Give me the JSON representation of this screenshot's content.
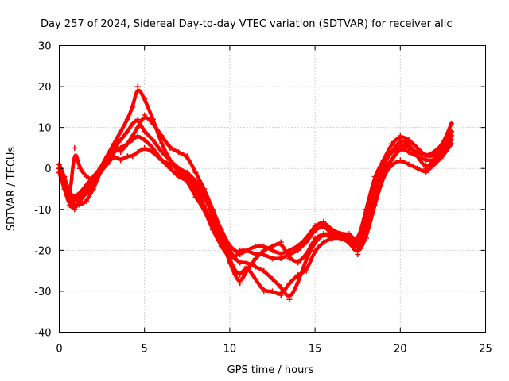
{
  "chart_data": {
    "type": "scatter",
    "title": "Day 257 of 2024, Sidereal Day-to-day VTEC variation (SDTVAR) for receiver alic",
    "xlabel": "GPS time / hours",
    "ylabel": "SDTVAR / TECUs",
    "xlim": [
      0,
      25
    ],
    "ylim": [
      -40,
      30
    ],
    "xticks": [
      0,
      5,
      10,
      15,
      20,
      25
    ],
    "yticks": [
      -40,
      -30,
      -20,
      -10,
      0,
      10,
      20,
      30
    ],
    "grid": true,
    "marker": "plus",
    "color": "#ff0000",
    "series": [
      {
        "x": [
          0.0,
          0.3,
          0.6,
          0.9,
          1.2,
          1.6,
          2.0,
          2.4,
          2.8,
          3.2,
          3.6,
          4.0,
          4.3,
          4.6,
          5.0,
          5.5,
          6.0,
          6.5,
          7.0,
          7.5,
          8.0,
          8.5,
          9.0,
          9.5,
          10.0,
          10.3,
          10.6,
          11.0,
          11.5,
          12.0,
          12.5,
          13.0,
          13.5,
          14.0,
          14.5,
          15.0,
          15.5,
          16.0,
          16.5,
          17.0,
          17.5,
          18.0,
          18.5,
          19.0,
          19.5,
          20.0,
          20.5,
          21.0,
          21.5,
          22.0,
          22.5,
          23.0
        ],
        "y": [
          0,
          -4,
          -8,
          -9,
          -9,
          -8,
          -5,
          -1,
          2,
          4,
          5,
          6,
          7,
          8,
          7,
          5,
          2,
          0,
          -2,
          -3,
          -5,
          -9,
          -14,
          -18,
          -20,
          -22,
          -20,
          -20,
          -21,
          -21,
          -22,
          -22,
          -21,
          -20,
          -18,
          -15,
          -14,
          -16,
          -16,
          -17,
          -20,
          -15,
          -5,
          0,
          2,
          5,
          4,
          3,
          2,
          2,
          4,
          7
        ]
      },
      {
        "x": [
          0.0,
          0.3,
          0.6,
          0.9,
          1.2,
          1.6,
          2.0,
          2.4,
          2.8,
          3.2,
          3.6,
          4.0,
          4.3,
          4.6,
          5.0,
          5.5,
          6.0,
          6.5,
          7.0,
          7.5,
          8.0,
          8.5,
          9.0,
          9.5,
          10.0,
          10.3,
          10.6,
          11.0,
          11.5,
          12.0,
          12.5,
          13.0,
          13.5,
          14.0,
          14.5,
          15.0,
          15.5,
          16.0,
          16.5,
          17.0,
          17.5,
          18.0,
          18.5,
          19.0,
          19.5,
          20.0,
          20.5,
          21.0,
          21.5,
          22.0,
          22.5,
          23.0
        ],
        "y": [
          1,
          -2,
          -6,
          -7,
          -6,
          -4,
          -2,
          0,
          3,
          6,
          9,
          12,
          15,
          20,
          17,
          12,
          6,
          2,
          -1,
          -3,
          -7,
          -10,
          -15,
          -19,
          -22,
          -25,
          -26,
          -24,
          -27,
          -30,
          -30,
          -31,
          -28,
          -26,
          -25,
          -20,
          -18,
          -17,
          -17,
          -17,
          -19,
          -12,
          -4,
          1,
          4,
          7,
          6,
          3,
          0,
          2,
          5,
          8
        ]
      },
      {
        "x": [
          0.0,
          0.3,
          0.6,
          0.9,
          1.2,
          1.6,
          2.0,
          2.4,
          2.8,
          3.2,
          3.6,
          4.0,
          4.3,
          4.6,
          5.0,
          5.5,
          6.0,
          6.5,
          7.0,
          7.5,
          8.0,
          8.5,
          9.0,
          9.5,
          10.0,
          10.3,
          10.6,
          11.0,
          11.5,
          12.0,
          12.5,
          13.0,
          13.5,
          14.0,
          14.5,
          15.0,
          15.5,
          16.0,
          16.5,
          17.0,
          17.5,
          18.0,
          18.5,
          19.0,
          19.5,
          20.0,
          20.5,
          21.0,
          21.5,
          22.0,
          22.5,
          23.0
        ],
        "y": [
          -1,
          -5,
          -9,
          -10,
          -8,
          -6,
          -4,
          -1,
          1,
          3,
          2,
          3,
          3,
          4,
          5,
          4,
          2,
          1,
          0,
          -2,
          -4,
          -7,
          -11,
          -16,
          -21,
          -22,
          -23,
          -23,
          -24,
          -25,
          -27,
          -29,
          -32,
          -28,
          -22,
          -18,
          -16,
          -17,
          -17,
          -18,
          -21,
          -17,
          -9,
          -2,
          1,
          2,
          1,
          0,
          -1,
          1,
          3,
          6
        ]
      },
      {
        "x": [
          0.0,
          0.3,
          0.6,
          0.9,
          1.2,
          1.6,
          2.0,
          2.4,
          2.8,
          3.2,
          3.6,
          4.0,
          4.3,
          4.6,
          5.0,
          5.5,
          6.0,
          6.5,
          7.0,
          7.5,
          8.0,
          8.5,
          9.0,
          9.5,
          10.0,
          10.3,
          10.6,
          11.0,
          11.5,
          12.0,
          12.5,
          13.0,
          13.5,
          14.0,
          14.5,
          15.0,
          15.5,
          16.0,
          16.5,
          17.0,
          17.5,
          18.0,
          18.5,
          19.0,
          19.5,
          20.0,
          20.5,
          21.0,
          21.5,
          22.0,
          22.5,
          23.0
        ],
        "y": [
          0,
          -3,
          -7,
          -8,
          -7,
          -5,
          -3,
          0,
          2,
          5,
          7,
          9,
          11,
          12,
          9,
          7,
          4,
          2,
          0,
          -1,
          -3,
          -6,
          -12,
          -17,
          -23,
          -26,
          -28,
          -25,
          -22,
          -20,
          -19,
          -18,
          -22,
          -23,
          -21,
          -17,
          -16,
          -16,
          -17,
          -18,
          -20,
          -13,
          -6,
          -1,
          2,
          6,
          5,
          4,
          3,
          3,
          5,
          9
        ]
      },
      {
        "x": [
          0.0,
          0.3,
          0.6,
          0.9,
          1.2,
          1.6,
          2.0,
          2.4,
          2.8,
          3.2,
          3.6,
          4.0,
          4.3,
          4.6,
          5.0,
          5.5,
          6.0,
          6.5,
          7.0,
          7.5,
          8.0,
          8.5,
          9.0,
          9.5,
          10.0,
          10.3,
          10.6,
          11.0,
          11.5,
          12.0,
          12.5,
          13.0,
          13.5,
          14.0,
          14.5,
          15.0,
          15.5,
          16.0,
          16.5,
          17.0,
          17.5,
          18.0,
          18.5,
          19.0,
          19.5,
          20.0,
          20.5,
          21.0,
          21.5,
          22.0,
          22.5,
          23.0
        ],
        "y": [
          1,
          -3,
          -8,
          5,
          0,
          -2,
          -3,
          0,
          3,
          6,
          4,
          6,
          8,
          10,
          13,
          11,
          8,
          5,
          4,
          3,
          -1,
          -5,
          -10,
          -15,
          -19,
          -20,
          -21,
          -20,
          -19,
          -19,
          -20,
          -21,
          -20,
          -19,
          -17,
          -14,
          -13,
          -15,
          -16,
          -16,
          -18,
          -10,
          -2,
          2,
          6,
          8,
          7,
          5,
          3,
          4,
          6,
          11
        ]
      }
    ]
  }
}
